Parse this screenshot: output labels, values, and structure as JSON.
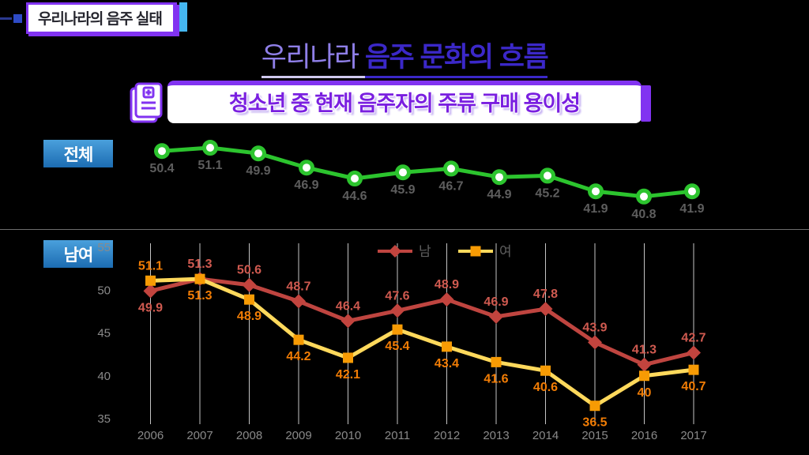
{
  "badge": {
    "label": "우리나라의 음주 실태"
  },
  "title": {
    "light": "우리나라 ",
    "bold1": "음주",
    "bold2": " 문화의 흐름"
  },
  "banner": {
    "text": "청소년 중 현재 음주자의 주류 구매 용이성",
    "icon": "report-icon"
  },
  "colors": {
    "background": "#000000",
    "badge_border": "#8133f1",
    "badge_accent": "#45b6f0",
    "section_box_blue_top": "#4aa0dc",
    "section_box_blue_bottom": "#1c6cb2",
    "total_line_green": "#2cc42e",
    "male_line_red": "#bf4540",
    "female_line_yellow": "#ffd95c",
    "female_marker_orange": "#f79b04",
    "male_label": "#cf5a50",
    "female_label": "#f27d05",
    "axis_gray": "#8a8a8a",
    "grid_gray": "#c4c4c4",
    "value_gray": "#5e5e5e"
  },
  "chart_data": [
    {
      "type": "line",
      "section_label": "전체",
      "x": [
        2006,
        2007,
        2008,
        2009,
        2010,
        2011,
        2012,
        2013,
        2014,
        2015,
        2016,
        2017
      ],
      "values": [
        50.4,
        51.1,
        49.9,
        46.9,
        44.6,
        45.9,
        46.7,
        44.9,
        45.2,
        41.9,
        40.8,
        41.9
      ],
      "labels": [
        "50.4",
        "51.1",
        "49.9",
        "46.9",
        "44.6",
        "45.9",
        "46.7",
        "44.9",
        "45.2",
        "41.9",
        "40.8",
        "41.9"
      ],
      "line_color": "#2cc42e",
      "marker": "circle-white-fill",
      "label_color": "#5e5e5e",
      "grid": false,
      "axes": false
    },
    {
      "type": "line",
      "section_label": "남여",
      "categories": [
        "2006",
        "2007",
        "2008",
        "2009",
        "2010",
        "2011",
        "2012",
        "2013",
        "2014",
        "2015",
        "2016",
        "2017"
      ],
      "ylim": [
        35,
        55
      ],
      "yticks": [
        55,
        50,
        45,
        40,
        35
      ],
      "grid": "vertical-only",
      "legend_position": "top-center",
      "series": [
        {
          "name": "남",
          "marker": "diamond",
          "line_color": "#bf4540",
          "marker_color": "#c2443e",
          "label_color": "#cf5a50",
          "values": [
            49.9,
            51.3,
            50.6,
            48.7,
            46.4,
            47.6,
            48.9,
            46.9,
            47.8,
            43.9,
            41.3,
            42.7
          ],
          "labels": [
            "49.9",
            "51.3",
            "50.6",
            "48.7",
            "46.4",
            "47.6",
            "48.9",
            "46.9",
            "47.8",
            "43.9",
            "41.3",
            "42.7"
          ],
          "label_side": [
            "below",
            "above",
            "above",
            "above",
            "above",
            "above",
            "above",
            "above",
            "above",
            "above",
            "above",
            "above"
          ]
        },
        {
          "name": "여",
          "marker": "square",
          "line_color": "#ffd95c",
          "marker_color": "#f79b04",
          "label_color": "#f27d05",
          "values": [
            51.1,
            51.3,
            48.9,
            44.2,
            42.1,
            45.4,
            43.4,
            41.6,
            40.6,
            36.5,
            40,
            40.7
          ],
          "labels": [
            "51.1",
            "51.3",
            "48.9",
            "44.2",
            "42.1",
            "45.4",
            "43.4",
            "41.6",
            "40.6",
            "36.5",
            "40",
            "40.7"
          ],
          "label_side": [
            "above",
            "below",
            "below",
            "below",
            "below",
            "below",
            "below",
            "below",
            "below",
            "below",
            "below",
            "below"
          ]
        }
      ]
    }
  ]
}
